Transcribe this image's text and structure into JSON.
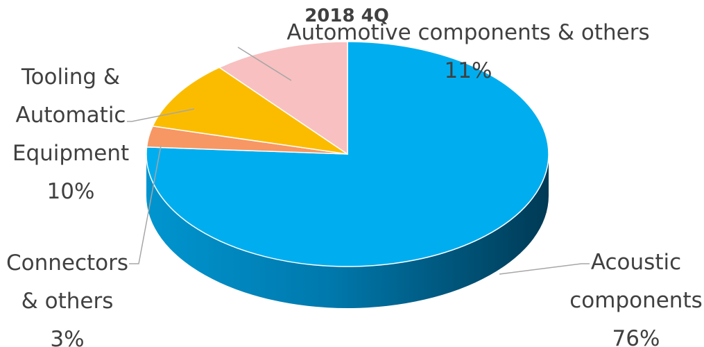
{
  "chart_data": {
    "type": "pie",
    "three_d": true,
    "title": "2018 4Q",
    "slices": [
      {
        "label": "Acoustic components",
        "label_lines": [
          "Acoustic",
          "components"
        ],
        "value": 76,
        "value_label": "76%",
        "color": "#00aeef",
        "side_color": "#005a82"
      },
      {
        "label": "Connectors & others",
        "label_lines": [
          "Connectors",
          "& others"
        ],
        "value": 3,
        "value_label": "3%",
        "color": "#f79763",
        "side_color": "#b5602e"
      },
      {
        "label": "Tooling & Automatic Equipment",
        "label_lines": [
          "Tooling &",
          "Automatic",
          "Equipment"
        ],
        "value": 10,
        "value_label": "10%",
        "color": "#fbbc00",
        "side_color": "#a87c00"
      },
      {
        "label": "Automotive components & others",
        "label_lines": [
          "Automotive components & others"
        ],
        "value": 11,
        "value_label": "11%",
        "color": "#f8c0c0",
        "side_color": "#c08a8a"
      }
    ],
    "legend": "none",
    "data_labels": "outside-with-leader-lines"
  }
}
